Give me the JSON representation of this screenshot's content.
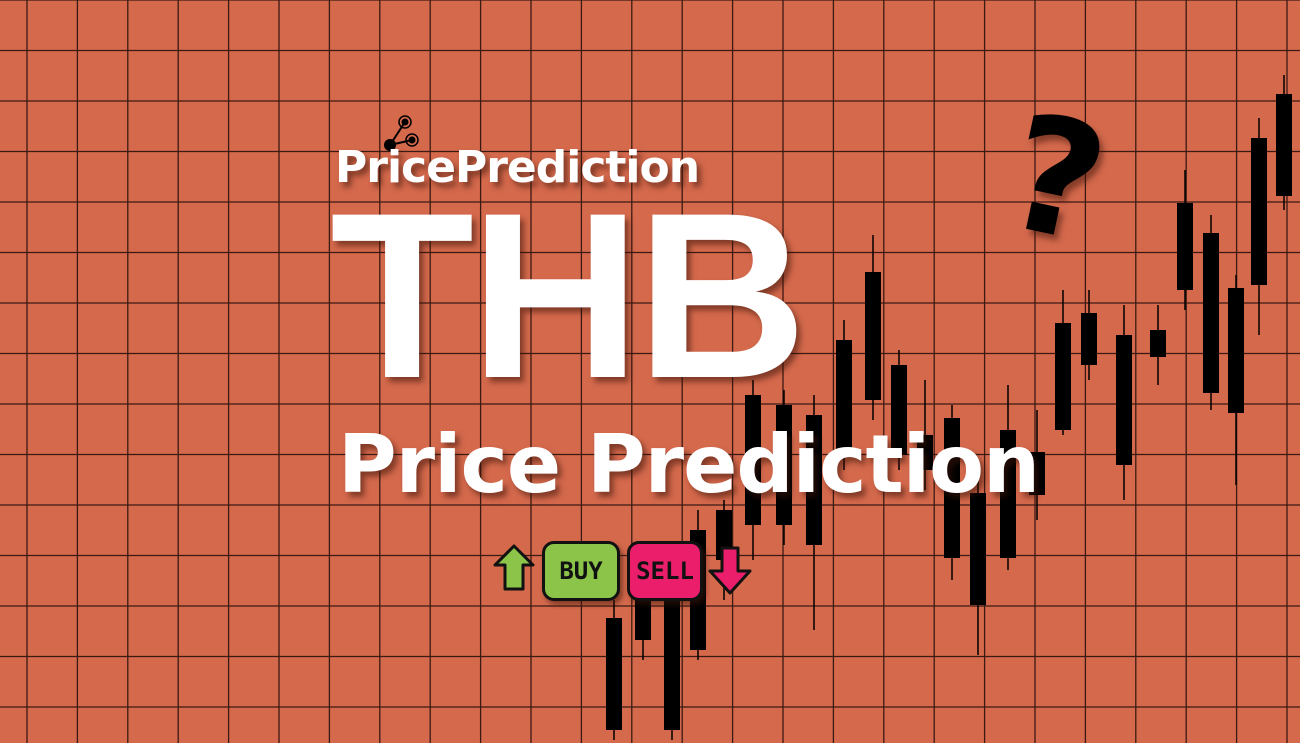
{
  "brand": {
    "name": "PricePrediction",
    "logo_icon": "network-nodes-icon"
  },
  "headline": {
    "ticker": "THB",
    "subtitle": "Price Prediction"
  },
  "decor": {
    "question_mark": "?"
  },
  "buttons": {
    "buy": "BUY",
    "sell": "SELL"
  },
  "colors": {
    "background": "#d4694c",
    "grid": "#3a1a12",
    "buy": "#8cc44a",
    "sell": "#ea1e6a",
    "candles": "#000000"
  }
}
